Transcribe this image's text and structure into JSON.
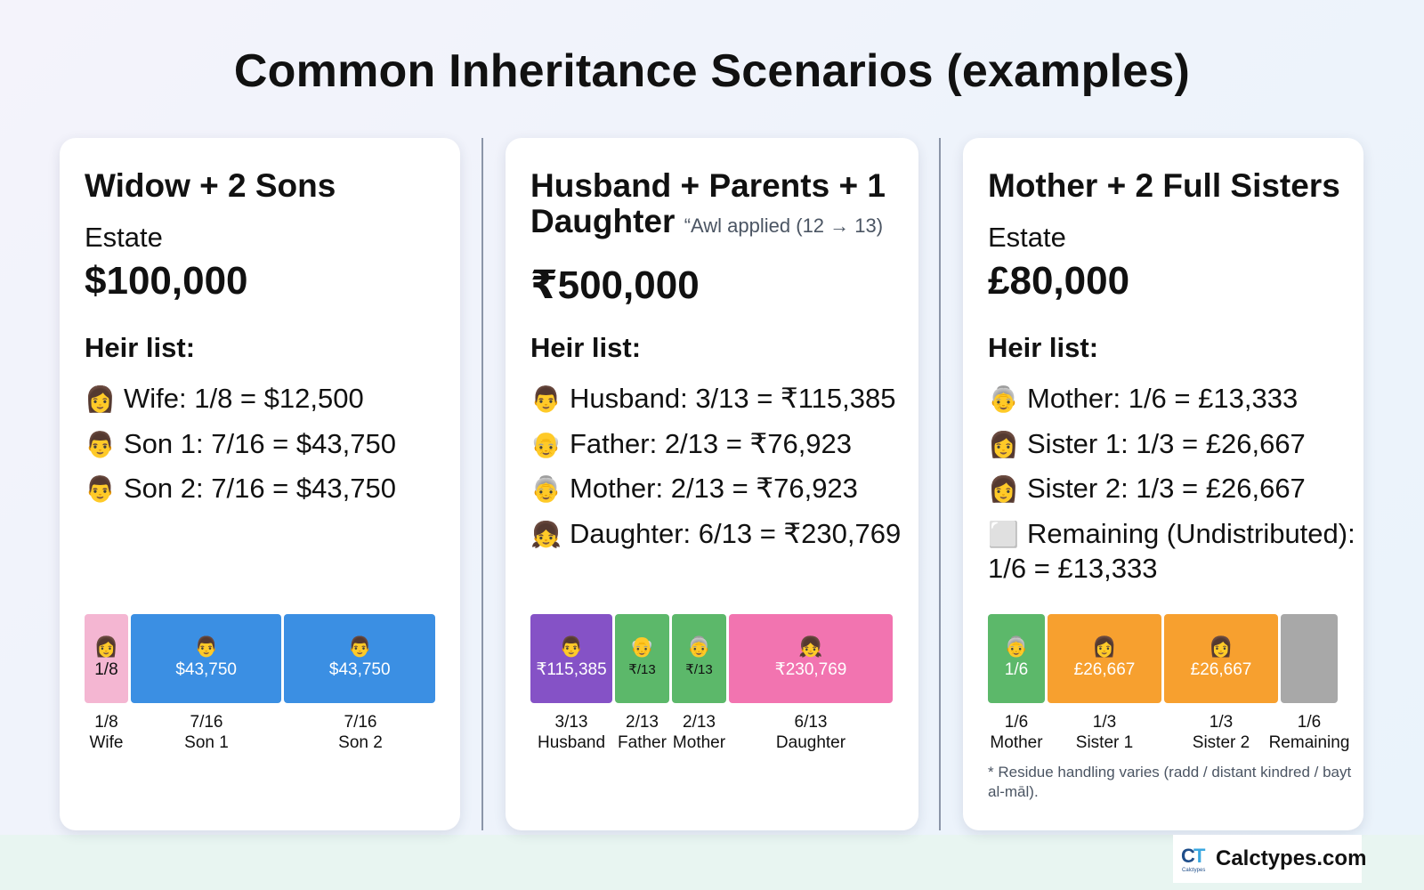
{
  "title": "Common Inheritance Scenarios (examples)",
  "colors": {
    "wife": "#f4b6d2",
    "son": "#3b8fe3",
    "husband": "#8552c6",
    "parent": "#5cb86a",
    "daughter": "#f274b0",
    "sister": "#f7a02f",
    "remaining": "#a8a8a8",
    "divider": "#8b95a8"
  },
  "cards": [
    {
      "title": "Widow + 2 Sons",
      "estate_label": "Estate",
      "estate_value": "$100,000",
      "heir_heading": "Heir list:",
      "heirs": [
        {
          "icon": "woman",
          "emoji": "👩",
          "text": "Wife: 1/8 = $12,500"
        },
        {
          "icon": "man",
          "emoji": "👨",
          "text": "Son 1: 7/16 = $43,750"
        },
        {
          "icon": "man",
          "emoji": "👨",
          "text": "Son 2: 7/16 = $43,750"
        }
      ],
      "bar": [
        {
          "name": "Wife",
          "emoji": "👩",
          "value": "1/8",
          "fraction": "1/8",
          "share": 0.125,
          "color": "wife"
        },
        {
          "name": "Son 1",
          "emoji": "👨",
          "value": "$43,750",
          "fraction": "7/16",
          "share": 0.4375,
          "color": "son"
        },
        {
          "name": "Son 2",
          "emoji": "👨",
          "value": "$43,750",
          "fraction": "7/16",
          "share": 0.4375,
          "color": "son"
        }
      ]
    },
    {
      "title": "Husband + Parents + 1 Daughter",
      "title_line1": "Husband + Parents + 1",
      "title_line2": "Daughter",
      "awl_note": "“Awl applied (12 → 13)",
      "estate_value": "₹500,000",
      "heir_heading": "Heir list:",
      "heirs": [
        {
          "icon": "man",
          "emoji": "👨",
          "text": "Husband: 3/13 = ₹115,385"
        },
        {
          "icon": "older-man",
          "emoji": "👴",
          "text": "Father: 2/13 = ₹76,923"
        },
        {
          "icon": "older-woman",
          "emoji": "👵",
          "text": "Mother: 2/13 = ₹76,923"
        },
        {
          "icon": "girl",
          "emoji": "👧",
          "text": "Daughter: 6/13 = ₹230,769"
        }
      ],
      "bar": [
        {
          "name": "Husband",
          "emoji": "👨",
          "value": "₹115,385",
          "fraction": "3/13",
          "share": 0.2308,
          "color": "husband"
        },
        {
          "name": "Father",
          "emoji": "👴",
          "value": "₹/13",
          "fraction": "2/13",
          "share": 0.1538,
          "color": "parent"
        },
        {
          "name": "Mother",
          "emoji": "👵",
          "value": "₹/13",
          "fraction": "2/13",
          "share": 0.1538,
          "color": "parent"
        },
        {
          "name": "Daughter",
          "emoji": "👧",
          "value": "₹230,769",
          "fraction": "6/13",
          "share": 0.4615,
          "color": "daughter"
        }
      ]
    },
    {
      "title": "Mother + 2 Full Sisters",
      "estate_label": "Estate",
      "estate_value": "£80,000",
      "heir_heading": "Heir list:",
      "heirs": [
        {
          "icon": "older-woman",
          "emoji": "👵",
          "text": "Mother: 1/6 = £13,333"
        },
        {
          "icon": "woman",
          "emoji": "👩",
          "text": "Sister 1: 1/3 = £26,667"
        },
        {
          "icon": "woman",
          "emoji": "👩",
          "text": "Sister 2: 1/3 = £26,667"
        },
        {
          "icon": "gray-square",
          "emoji": "⬜",
          "text": "Remaining (Undistributed): 1/6 = £13,333"
        }
      ],
      "bar": [
        {
          "name": "Mother",
          "emoji": "👵",
          "value": "1/6",
          "fraction": "1/6",
          "share": 0.1667,
          "color": "parent"
        },
        {
          "name": "Sister 1",
          "emoji": "👩",
          "value": "£26,667",
          "fraction": "1/3",
          "share": 0.3333,
          "color": "sister"
        },
        {
          "name": "Sister 2",
          "emoji": "👩",
          "value": "£26,667",
          "fraction": "1/3",
          "share": 0.3333,
          "color": "sister"
        },
        {
          "name": "Remaining",
          "emoji": "",
          "value": "",
          "fraction": "1/6",
          "share": 0.1667,
          "color": "remaining"
        }
      ],
      "footnote": "* Residue handling varies (radd / distant kindred / bayt al-māl)."
    }
  ],
  "logo": {
    "brand": "Calctypes.com",
    "mark": "CT"
  }
}
